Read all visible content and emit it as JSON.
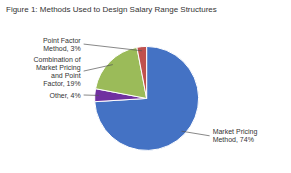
{
  "chart_data": {
    "type": "pie",
    "title": "Figure 1: Methods Used to Design Salary Range Structures",
    "categories": [
      "Market Pricing\nMethod, 74%",
      "Other, 4%",
      "Combination of\nMarket Pricing\nand Point\nFactor, 19%",
      "Point Factor\nMethod, 3%"
    ],
    "values": [
      74,
      4,
      19,
      3
    ],
    "colors": [
      "#4472C4",
      "#7030A0",
      "#9BBB59",
      "#C0504D"
    ]
  }
}
